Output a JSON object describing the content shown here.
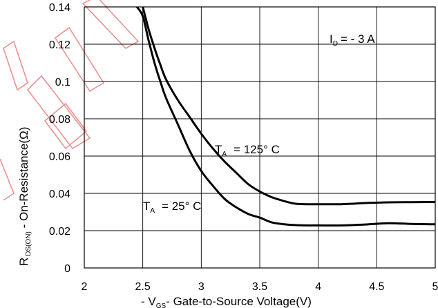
{
  "chart_data": {
    "type": "line",
    "xlabel": {
      "prefix": "- V",
      "sub": "GS",
      "suffix": "- Gate-to-Source Voltage(V)"
    },
    "ylabel": {
      "prefix": "R",
      "sub": "DS(ON)",
      "suffix": " - On-Resistance(Ω)"
    },
    "xlim": [
      2,
      5
    ],
    "ylim": [
      0,
      0.14
    ],
    "x_ticks": [
      "2",
      "2.5",
      "3",
      "3.5",
      "4",
      "4.5",
      "5"
    ],
    "y_ticks": [
      "0",
      "0.02",
      "0.04",
      "0.06",
      "0.08",
      "0.1",
      "0.12",
      "0.14"
    ],
    "grid": true,
    "annotations": {
      "id": {
        "prefix": "I",
        "sub": "D",
        "suffix": "= - 3 A"
      },
      "t125": {
        "prefix": "T",
        "sub": "A",
        "suffix": "= 125°  C"
      },
      "t25": {
        "prefix": "T",
        "sub": "A",
        "suffix": "= 25°  C"
      }
    },
    "series": [
      {
        "x": [
          2.5,
          2.55,
          2.6,
          2.65,
          2.7,
          2.8,
          2.9,
          3.0,
          3.1,
          3.2,
          3.3,
          3.4,
          3.5,
          3.6,
          3.7,
          3.8,
          3.9,
          4.0,
          4.2,
          4.4,
          4.6,
          4.8,
          5.0
        ],
        "y": [
          0.14,
          0.128,
          0.118,
          0.109,
          0.101,
          0.09,
          0.081,
          0.072,
          0.064,
          0.057,
          0.051,
          0.045,
          0.041,
          0.038,
          0.036,
          0.0345,
          0.0342,
          0.0342,
          0.0342,
          0.0348,
          0.0352,
          0.0353,
          0.0354
        ]
      },
      {
        "x": [
          2.45,
          2.5,
          2.55,
          2.6,
          2.65,
          2.7,
          2.8,
          2.9,
          3.0,
          3.1,
          3.2,
          3.3,
          3.4,
          3.5,
          3.6,
          3.7,
          3.8,
          3.9,
          4.0,
          4.2,
          4.4,
          4.6,
          4.8,
          5.0
        ],
        "y": [
          0.14,
          0.135,
          0.122,
          0.11,
          0.1,
          0.091,
          0.077,
          0.063,
          0.052,
          0.044,
          0.037,
          0.0325,
          0.029,
          0.027,
          0.0245,
          0.0235,
          0.023,
          0.0228,
          0.0228,
          0.0228,
          0.0233,
          0.024,
          0.0236,
          0.0234
        ]
      }
    ]
  }
}
